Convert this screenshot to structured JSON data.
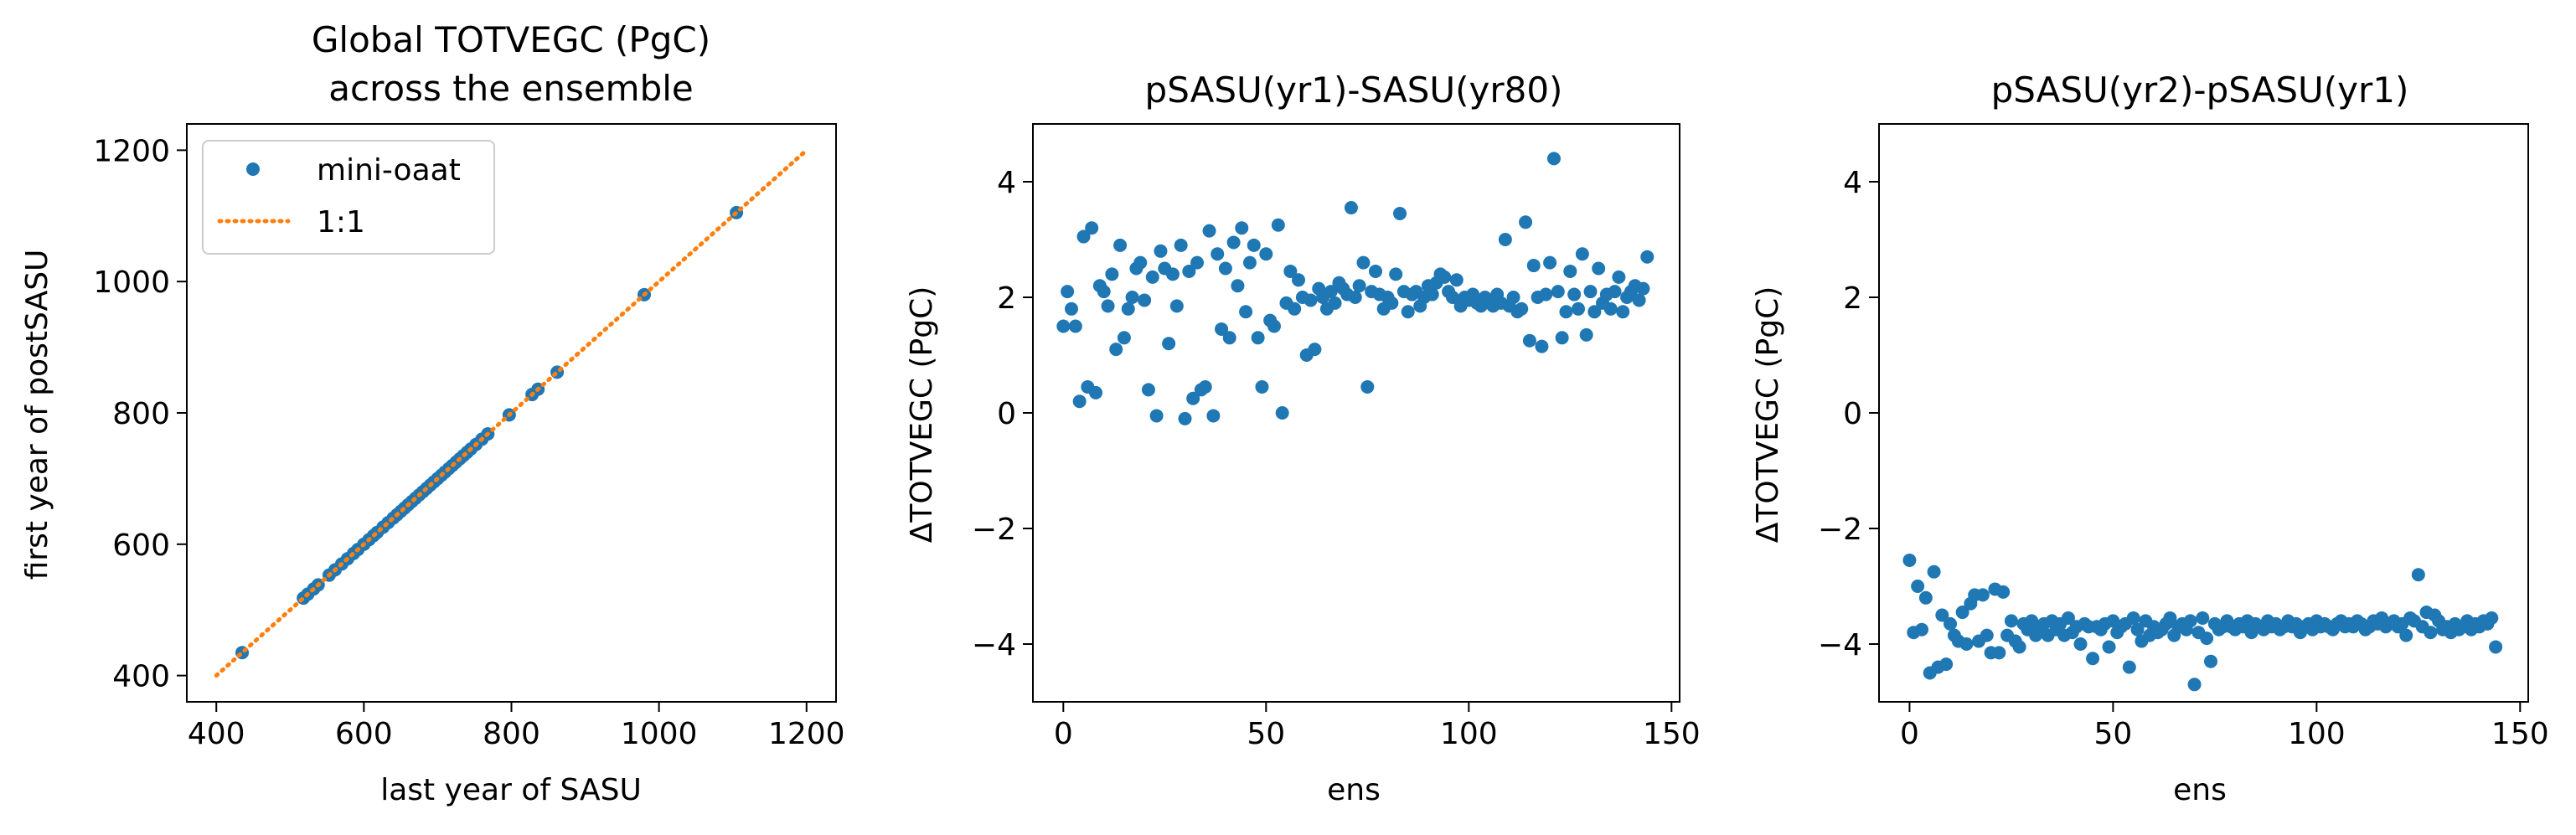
{
  "colors": {
    "series_blue": "#1f77b4",
    "line_orange": "#ff7f0e",
    "axis": "#000000",
    "background": "#ffffff"
  },
  "chart_data": [
    {
      "type": "scatter",
      "title": "Global TOTVEGC (PgC)",
      "subtitle": "across the ensemble",
      "xlabel": "last year of SASU",
      "ylabel": "first year of postSASU",
      "xlim": [
        360,
        1240
      ],
      "ylim": [
        360,
        1240
      ],
      "xticks": [
        400,
        600,
        800,
        1000,
        1200
      ],
      "yticks": [
        400,
        600,
        800,
        1000,
        1200
      ],
      "legend": {
        "position": "top-left",
        "entries": [
          {
            "label": "mini-oaat",
            "style": "marker"
          },
          {
            "label": "1:1",
            "style": "dotted-line"
          }
        ]
      },
      "series": [
        {
          "name": "mini-oaat",
          "style": "marker",
          "x": [
            435,
            518,
            524,
            532,
            538,
            553,
            561,
            570,
            578,
            586,
            592,
            600,
            607,
            613,
            618,
            626,
            633,
            640,
            645,
            650,
            655,
            660,
            665,
            670,
            675,
            680,
            685,
            690,
            695,
            700,
            705,
            710,
            715,
            720,
            725,
            730,
            735,
            740,
            745,
            752,
            760,
            768,
            797,
            828,
            836,
            862,
            980,
            1105
          ],
          "y": [
            435,
            518,
            524,
            532,
            538,
            553,
            561,
            570,
            578,
            586,
            592,
            600,
            607,
            613,
            618,
            626,
            633,
            640,
            645,
            650,
            655,
            660,
            665,
            670,
            675,
            680,
            685,
            690,
            695,
            700,
            705,
            710,
            715,
            720,
            725,
            730,
            735,
            740,
            745,
            752,
            760,
            768,
            797,
            828,
            836,
            862,
            980,
            1105
          ]
        },
        {
          "name": "1:1",
          "style": "dotted-line",
          "x": [
            400,
            1200
          ],
          "y": [
            400,
            1200
          ]
        }
      ]
    },
    {
      "type": "scatter",
      "title": "pSASU(yr1)-SASU(yr80)",
      "xlabel": "ens",
      "ylabel": "ΔTOTVEGC (PgC)",
      "xlim": [
        -7.5,
        152
      ],
      "ylim": [
        -5,
        5
      ],
      "xticks": [
        0,
        50,
        100,
        150
      ],
      "yticks": [
        -4,
        -2,
        0,
        2,
        4
      ],
      "series": [
        {
          "x": [
            0,
            1,
            2,
            3,
            4,
            5,
            6,
            7,
            8,
            9,
            10,
            11,
            12,
            13,
            14,
            15,
            16,
            17,
            18,
            19,
            20,
            21,
            22,
            23,
            24,
            25,
            26,
            27,
            28,
            29,
            30,
            31,
            32,
            33,
            34,
            35,
            36,
            37,
            38,
            39,
            40,
            41,
            42,
            43,
            44,
            45,
            46,
            47,
            48,
            49,
            50,
            51,
            52,
            53,
            54,
            55,
            56,
            57,
            58,
            59,
            60,
            61,
            62,
            63,
            64,
            65,
            66,
            67,
            68,
            69,
            70,
            71,
            72,
            73,
            74,
            75,
            76,
            77,
            78,
            79,
            80,
            81,
            82,
            83,
            84,
            85,
            86,
            87,
            88,
            89,
            90,
            91,
            92,
            93,
            94,
            95,
            96,
            97,
            98,
            99,
            100,
            101,
            102,
            103,
            104,
            105,
            106,
            107,
            108,
            109,
            110,
            111,
            112,
            113,
            114,
            115,
            116,
            117,
            118,
            119,
            120,
            121,
            122,
            123,
            124,
            125,
            126,
            127,
            128,
            129,
            130,
            131,
            132,
            133,
            134,
            135,
            136,
            137,
            138,
            139,
            140,
            141,
            142,
            143,
            144
          ],
          "y": [
            1.5,
            2.1,
            1.8,
            1.5,
            0.2,
            3.05,
            0.45,
            3.2,
            0.35,
            2.2,
            2.1,
            1.85,
            2.4,
            1.1,
            2.9,
            1.3,
            1.8,
            2.0,
            2.5,
            2.6,
            1.95,
            0.4,
            2.35,
            -0.05,
            2.8,
            2.5,
            1.2,
            2.4,
            1.85,
            2.9,
            -0.1,
            2.45,
            0.25,
            2.6,
            0.4,
            0.45,
            3.15,
            -0.05,
            2.75,
            1.45,
            2.5,
            1.3,
            2.95,
            2.2,
            3.2,
            1.75,
            2.6,
            2.9,
            1.3,
            0.45,
            2.75,
            1.6,
            1.5,
            3.25,
            0.0,
            1.9,
            2.45,
            1.8,
            2.3,
            2.0,
            1.0,
            1.95,
            1.1,
            2.15,
            2.0,
            1.8,
            2.1,
            1.9,
            2.25,
            2.15,
            2.05,
            3.55,
            2.0,
            2.2,
            2.6,
            0.45,
            2.1,
            2.45,
            2.05,
            1.8,
            2.0,
            1.9,
            2.4,
            3.45,
            2.1,
            1.75,
            2.05,
            2.1,
            1.85,
            2.0,
            2.2,
            2.05,
            2.25,
            2.4,
            2.35,
            2.1,
            2.0,
            2.3,
            1.85,
            2.0,
            1.95,
            2.05,
            1.9,
            1.85,
            2.0,
            1.95,
            1.85,
            2.05,
            1.9,
            3.0,
            1.85,
            2.0,
            1.75,
            1.8,
            3.3,
            1.25,
            2.55,
            2.0,
            1.15,
            2.05,
            2.6,
            4.4,
            2.1,
            1.3,
            1.75,
            2.45,
            2.05,
            1.8,
            2.75,
            1.35,
            2.1,
            1.75,
            2.5,
            1.9,
            2.05,
            1.8,
            2.1,
            2.35,
            1.75,
            2.0,
            2.1,
            2.2,
            1.95,
            2.15,
            2.7
          ]
        }
      ]
    },
    {
      "type": "scatter",
      "title": "pSASU(yr2)-pSASU(yr1)",
      "xlabel": "ens",
      "ylabel": "ΔTOTVEGC (PgC)",
      "xlim": [
        -7.5,
        152
      ],
      "ylim": [
        -5,
        5
      ],
      "xticks": [
        0,
        50,
        100,
        150
      ],
      "yticks": [
        -4,
        -2,
        0,
        2,
        4
      ],
      "series": [
        {
          "x": [
            0,
            1,
            2,
            3,
            4,
            5,
            6,
            7,
            8,
            9,
            10,
            11,
            12,
            13,
            14,
            15,
            16,
            17,
            18,
            19,
            20,
            21,
            22,
            23,
            24,
            25,
            26,
            27,
            28,
            29,
            30,
            31,
            32,
            33,
            34,
            35,
            36,
            37,
            38,
            39,
            40,
            41,
            42,
            43,
            44,
            45,
            46,
            47,
            48,
            49,
            50,
            51,
            52,
            53,
            54,
            55,
            56,
            57,
            58,
            59,
            60,
            61,
            62,
            63,
            64,
            65,
            66,
            67,
            68,
            69,
            70,
            71,
            72,
            73,
            74,
            75,
            76,
            77,
            78,
            79,
            80,
            81,
            82,
            83,
            84,
            85,
            86,
            87,
            88,
            89,
            90,
            91,
            92,
            93,
            94,
            95,
            96,
            97,
            98,
            99,
            100,
            101,
            102,
            103,
            104,
            105,
            106,
            107,
            108,
            109,
            110,
            111,
            112,
            113,
            114,
            115,
            116,
            117,
            118,
            119,
            120,
            121,
            122,
            123,
            124,
            125,
            126,
            127,
            128,
            129,
            130,
            131,
            132,
            133,
            134,
            135,
            136,
            137,
            138,
            139,
            140,
            141,
            142,
            143,
            144
          ],
          "y": [
            -2.55,
            -3.8,
            -3.0,
            -3.75,
            -3.2,
            -4.5,
            -2.75,
            -4.4,
            -3.5,
            -4.35,
            -3.65,
            -3.85,
            -3.95,
            -3.45,
            -4.0,
            -3.3,
            -3.15,
            -3.95,
            -3.15,
            -3.85,
            -4.15,
            -3.05,
            -4.15,
            -3.1,
            -3.85,
            -3.6,
            -3.95,
            -4.05,
            -3.65,
            -3.75,
            -3.6,
            -3.85,
            -3.7,
            -3.65,
            -3.85,
            -3.6,
            -3.75,
            -3.65,
            -3.85,
            -3.55,
            -3.8,
            -3.7,
            -4.0,
            -3.65,
            -3.7,
            -4.25,
            -3.7,
            -3.75,
            -3.65,
            -4.05,
            -3.6,
            -3.8,
            -3.7,
            -3.65,
            -4.4,
            -3.55,
            -3.75,
            -3.95,
            -3.6,
            -3.85,
            -3.7,
            -3.8,
            -3.75,
            -3.65,
            -3.55,
            -3.85,
            -3.7,
            -3.65,
            -3.75,
            -3.6,
            -4.7,
            -3.8,
            -3.55,
            -3.9,
            -4.3,
            -3.65,
            -3.75,
            -3.7,
            -3.6,
            -3.7,
            -3.75,
            -3.65,
            -3.7,
            -3.6,
            -3.8,
            -3.65,
            -3.7,
            -3.75,
            -3.6,
            -3.7,
            -3.65,
            -3.75,
            -3.7,
            -3.6,
            -3.7,
            -3.65,
            -3.8,
            -3.7,
            -3.65,
            -3.75,
            -3.6,
            -3.7,
            -3.65,
            -3.7,
            -3.75,
            -3.65,
            -3.6,
            -3.7,
            -3.65,
            -3.7,
            -3.6,
            -3.65,
            -3.75,
            -3.7,
            -3.6,
            -3.65,
            -3.55,
            -3.7,
            -3.65,
            -3.6,
            -3.7,
            -3.65,
            -3.85,
            -3.55,
            -3.6,
            -2.8,
            -3.7,
            -3.45,
            -3.8,
            -3.5,
            -3.6,
            -3.75,
            -3.7,
            -3.8,
            -3.65,
            -3.75,
            -3.7,
            -3.6,
            -3.75,
            -3.65,
            -3.7,
            -3.6,
            -3.65,
            -3.55,
            -4.05
          ]
        }
      ]
    }
  ]
}
